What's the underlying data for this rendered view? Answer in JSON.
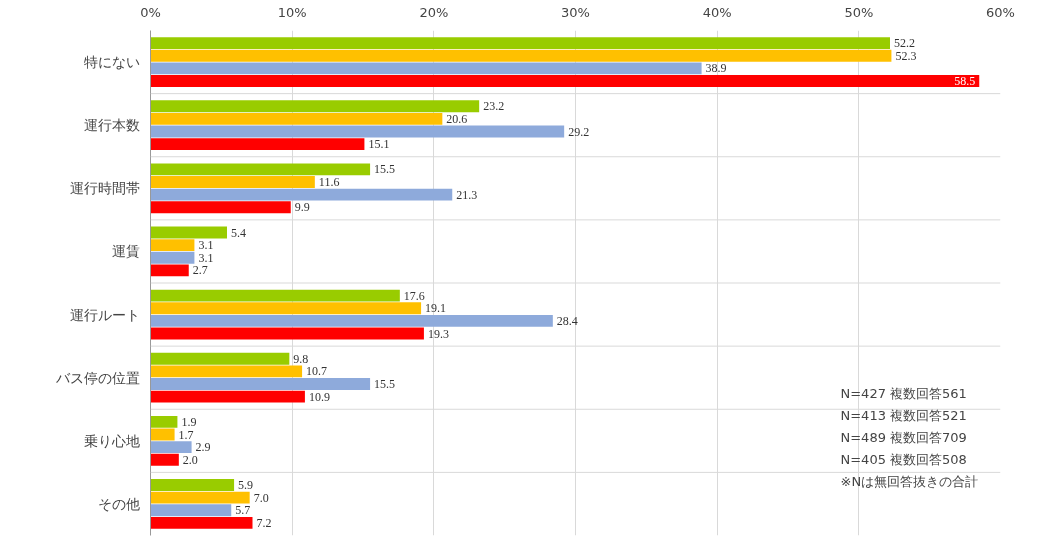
{
  "chart_data": {
    "type": "bar",
    "orientation": "horizontal",
    "categories": [
      "特にない",
      "運行本数",
      "運行時間帯",
      "運賃",
      "運行ルート",
      "バス停の位置",
      "乗り心地",
      "その他"
    ],
    "series": [
      {
        "color": "#99cc00",
        "values": [
          52.2,
          23.2,
          15.5,
          5.4,
          17.6,
          9.8,
          1.9,
          5.9
        ]
      },
      {
        "color": "#ffc000",
        "values": [
          52.3,
          20.6,
          11.6,
          3.1,
          19.1,
          10.7,
          1.7,
          7.0
        ],
        "value_labels": [
          "52.3",
          "20.6",
          "11.6",
          "3.1",
          "19.1",
          "10.7",
          "1.7",
          "7.0"
        ]
      },
      {
        "color": "#8eaadb",
        "values": [
          38.9,
          29.2,
          21.3,
          3.1,
          28.4,
          15.5,
          2.9,
          5.7
        ]
      },
      {
        "color": "#ff0000",
        "values": [
          58.5,
          15.1,
          9.9,
          2.7,
          19.3,
          10.9,
          2.0,
          7.2
        ],
        "value_labels": [
          "58.5",
          "15.1",
          "9.9",
          "2.7",
          "19.3",
          "10.9",
          "2.0",
          "7.2"
        ]
      }
    ],
    "xlim": [
      0,
      60
    ],
    "xticks": [
      {
        "value": 0,
        "label": "0%"
      },
      {
        "value": 10,
        "label": "10%"
      },
      {
        "value": 20,
        "label": "20%"
      },
      {
        "value": 30,
        "label": "30%"
      },
      {
        "value": 40,
        "label": "40%"
      },
      {
        "value": 50,
        "label": "50%"
      },
      {
        "value": 60,
        "label": "60%"
      }
    ],
    "data_labels": true,
    "grid": true,
    "legend": false,
    "annotations": [
      "N=427 複数回答561",
      "N=413 複数回答521",
      "N=489 複数回答709",
      "N=405 複数回答508",
      "※Nは無回答抜きの合計"
    ]
  }
}
